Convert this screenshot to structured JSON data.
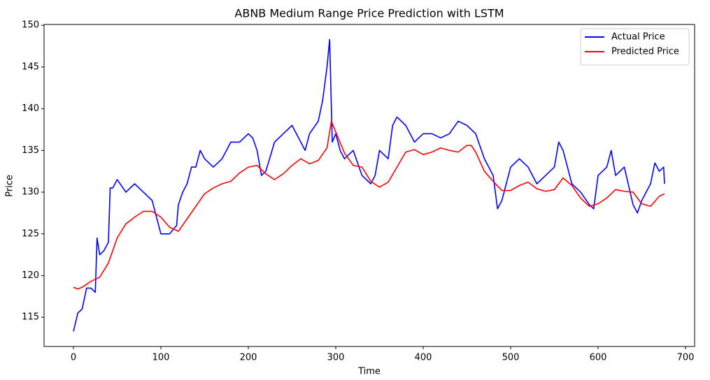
{
  "chart_data": {
    "type": "line",
    "title": "ABNB Medium Range Price Prediction with LSTM",
    "x_label": "Time",
    "y_label": "Price",
    "xlim": [
      -33.6,
      710.4
    ],
    "xticks": [
      0,
      100,
      200,
      300,
      400,
      500,
      600,
      700
    ],
    "ylim": [
      111.5,
      150.1
    ],
    "yticks": [
      115,
      120,
      125,
      130,
      135,
      140,
      145,
      150
    ],
    "legend": "upper right",
    "grid": false,
    "series": [
      {
        "name": "Actual Price",
        "color": "#0000ff",
        "x": [
          0,
          5,
          10,
          15,
          20,
          25,
          27,
          30,
          35,
          40,
          42,
          45,
          50,
          60,
          70,
          80,
          90,
          100,
          110,
          118,
          120,
          125,
          130,
          135,
          140,
          145,
          150,
          160,
          170,
          180,
          190,
          200,
          205,
          210,
          215,
          220,
          230,
          240,
          250,
          260,
          265,
          270,
          280,
          285,
          290,
          293,
          296,
          300,
          305,
          310,
          320,
          330,
          340,
          345,
          350,
          360,
          365,
          370,
          380,
          390,
          400,
          410,
          420,
          430,
          440,
          450,
          460,
          470,
          480,
          485,
          490,
          500,
          510,
          520,
          530,
          540,
          550,
          555,
          560,
          565,
          570,
          580,
          590,
          595,
          600,
          610,
          615,
          620,
          630,
          640,
          645,
          650,
          660,
          665,
          670,
          675,
          676
        ],
        "values": [
          113.3,
          115.5,
          116,
          118.5,
          118.5,
          118,
          124.5,
          122.5,
          123,
          124,
          130.5,
          130.5,
          131.5,
          130,
          131,
          130,
          129,
          125,
          125,
          126,
          128.5,
          130,
          131,
          133,
          133,
          135,
          134,
          133,
          134,
          136,
          136,
          137,
          136.5,
          135,
          132,
          132.5,
          136,
          137,
          138,
          136,
          135,
          137,
          138.5,
          141,
          145,
          148.3,
          136,
          137,
          135,
          134,
          135,
          132,
          131,
          132,
          135,
          134,
          138,
          139,
          138,
          136,
          137,
          137,
          136.5,
          137,
          138.5,
          138,
          137,
          134,
          132,
          128,
          129,
          133,
          134,
          133,
          131,
          132,
          133,
          136,
          135,
          133,
          131,
          130,
          128.5,
          128,
          132,
          133,
          135,
          132,
          133,
          128.5,
          127.5,
          129,
          131,
          133.5,
          132.5,
          133,
          131
        ]
      },
      {
        "name": "Predicted Price",
        "color": "#ff0000",
        "x": [
          0,
          5,
          10,
          20,
          30,
          40,
          50,
          60,
          70,
          80,
          90,
          100,
          110,
          120,
          130,
          140,
          150,
          160,
          170,
          180,
          190,
          200,
          210,
          220,
          230,
          240,
          250,
          260,
          270,
          280,
          290,
          295,
          300,
          310,
          320,
          330,
          340,
          350,
          360,
          370,
          380,
          390,
          400,
          410,
          420,
          430,
          440,
          450,
          455,
          460,
          470,
          480,
          490,
          500,
          510,
          520,
          530,
          540,
          550,
          560,
          570,
          580,
          590,
          600,
          610,
          620,
          630,
          640,
          650,
          660,
          670,
          676
        ],
        "values": [
          118.6,
          118.4,
          118.6,
          119.3,
          119.8,
          121.5,
          124.5,
          126.2,
          127,
          127.7,
          127.7,
          127,
          125.8,
          125.3,
          126.8,
          128.3,
          129.8,
          130.5,
          131,
          131.3,
          132.3,
          133,
          133.2,
          132.2,
          131.5,
          132.2,
          133.2,
          134,
          133.4,
          133.8,
          135.3,
          138.5,
          137.2,
          134.7,
          133.2,
          133,
          131.3,
          130.6,
          131.2,
          133,
          134.8,
          135.1,
          134.5,
          134.8,
          135.3,
          135,
          134.8,
          135.6,
          135.6,
          134.8,
          132.5,
          131.3,
          130.2,
          130.2,
          130.8,
          131.2,
          130.4,
          130.1,
          130.3,
          131.7,
          130.8,
          129.3,
          128.3,
          128.6,
          129.3,
          130.3,
          130.1,
          130,
          128.6,
          128.3,
          129.5,
          129.8
        ]
      }
    ]
  }
}
